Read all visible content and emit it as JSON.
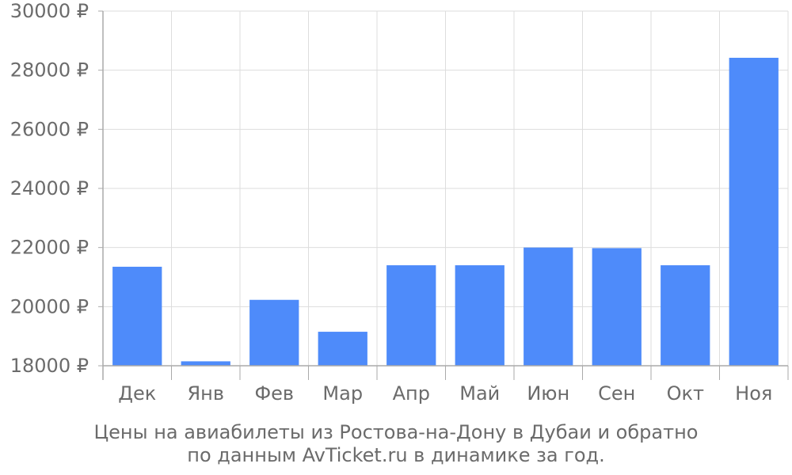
{
  "chart_data": {
    "type": "bar",
    "categories": [
      "Дек",
      "Янв",
      "Фев",
      "Мар",
      "Апр",
      "Май",
      "Июн",
      "Сен",
      "Окт",
      "Ноя"
    ],
    "values": [
      21350,
      18150,
      20230,
      19150,
      21400,
      21400,
      22000,
      21980,
      21400,
      28420
    ],
    "ylim": [
      18000,
      30000
    ],
    "y_ticks": [
      18000,
      20000,
      22000,
      24000,
      26000,
      28000,
      30000
    ],
    "y_tick_labels": [
      "18000 ₽",
      "20000 ₽",
      "22000 ₽",
      "24000 ₽",
      "26000 ₽",
      "28000 ₽",
      "30000 ₽"
    ],
    "grid": true,
    "bar_color": "#4e8bfa",
    "grid_color": "#dddddd",
    "axis_color": "#aaaaaa",
    "text_color": "#6b6b6b"
  },
  "caption": {
    "line1": "Цены на авиабилеты из Ростова-на-Дону в Дубаи и обратно",
    "line2": "по данным AvTicket.ru в динамике за год."
  }
}
